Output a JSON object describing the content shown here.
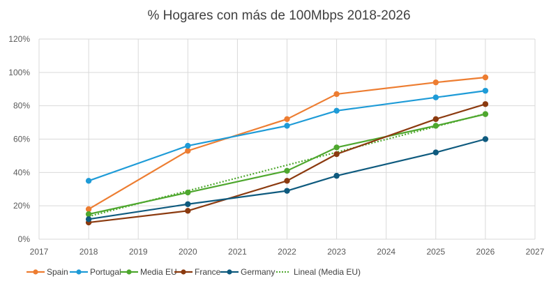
{
  "chart_data": {
    "type": "line",
    "title": "% Hogares con más de 100Mbps 2018-2026",
    "xlabel": "",
    "ylabel": "",
    "x": [
      2018,
      2020,
      2022,
      2023,
      2025,
      2026
    ],
    "xlim": [
      2017,
      2027
    ],
    "x_ticks": [
      "2017",
      "2018",
      "2019",
      "2020",
      "2021",
      "2022",
      "2023",
      "2024",
      "2025",
      "2026",
      "2027"
    ],
    "ylim": [
      0,
      120
    ],
    "y_ticks": [
      "0%",
      "20%",
      "40%",
      "60%",
      "80%",
      "100%",
      "120%"
    ],
    "grid": true,
    "legend_position": "bottom",
    "series": [
      {
        "name": "Spain",
        "color": "#ED7D31",
        "values": [
          18,
          53,
          72,
          87,
          94,
          97
        ]
      },
      {
        "name": "Portugal",
        "color": "#1E9BD7",
        "values": [
          35,
          56,
          68,
          77,
          85,
          89
        ]
      },
      {
        "name": "Media EU",
        "color": "#4EA72E",
        "values": [
          15,
          28,
          41,
          55,
          68,
          75
        ]
      },
      {
        "name": "France",
        "color": "#8B3A0F",
        "values": [
          10,
          17,
          35,
          51,
          72,
          81
        ]
      },
      {
        "name": "Germany",
        "color": "#0E5A7E",
        "values": [
          12,
          21,
          29,
          38,
          52,
          60
        ]
      }
    ],
    "trendline": {
      "name": "Lineal (Media EU)",
      "color": "#4EA72E",
      "type": "linear",
      "of_series": "Media EU",
      "x_range": [
        2018,
        2026
      ]
    }
  }
}
